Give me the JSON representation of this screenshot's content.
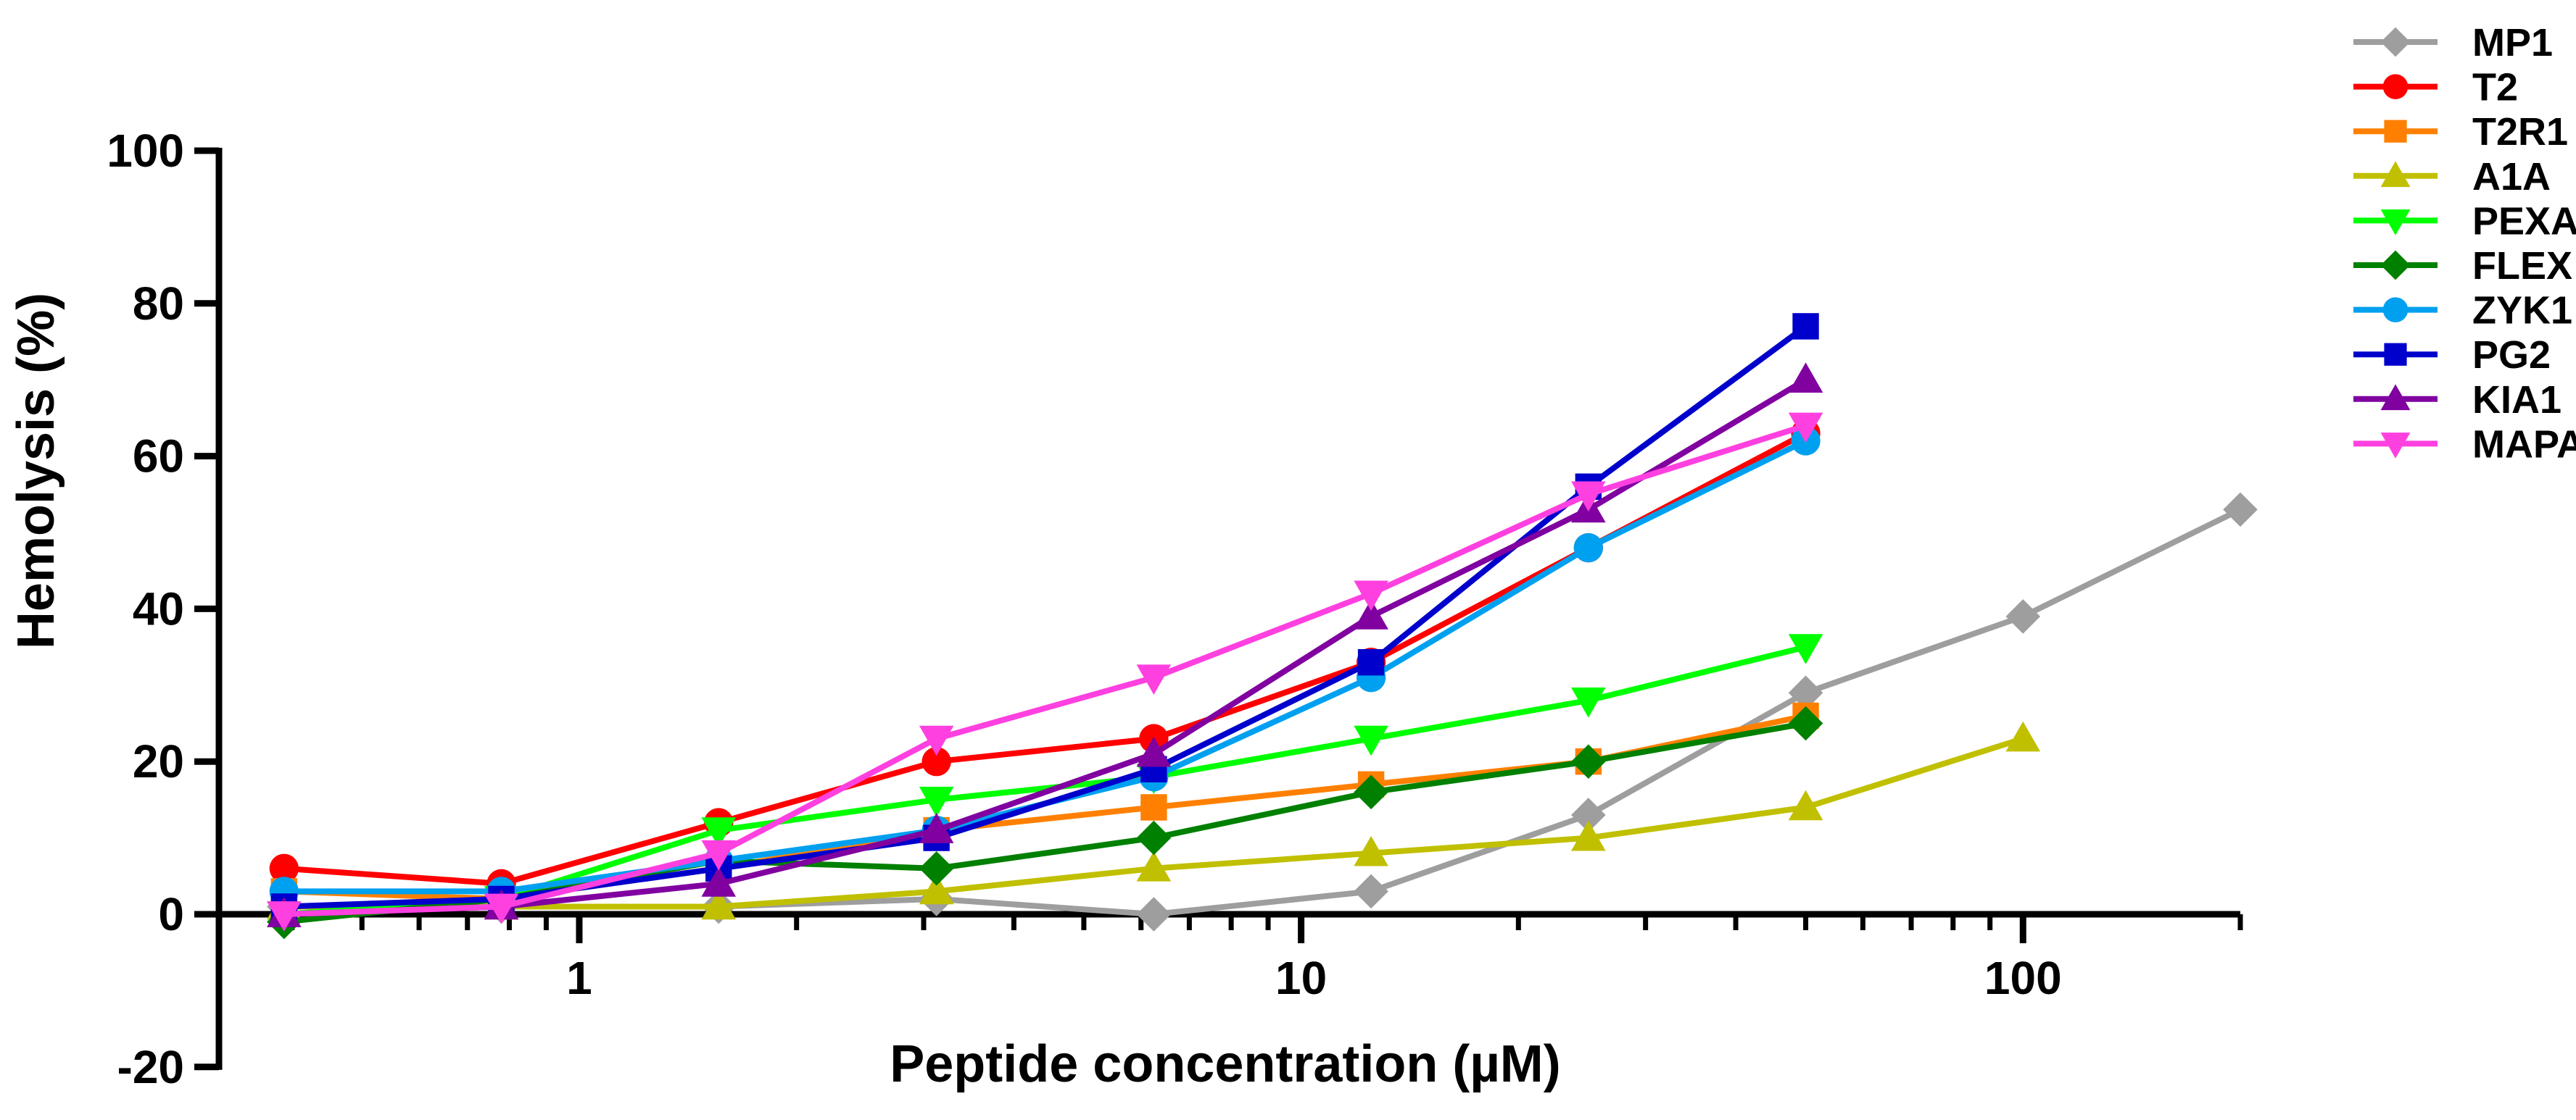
{
  "chart_data": {
    "type": "line",
    "title": "",
    "xlabel": "Peptide concentration (µM)",
    "ylabel": "Hemolysis (%)",
    "xscale": "log",
    "xlim": [
      0.35,
      200
    ],
    "ylim": [
      -20,
      100
    ],
    "yticks": [
      -20,
      0,
      20,
      40,
      60,
      80,
      100
    ],
    "xticks": [
      1,
      10,
      100
    ],
    "xtick_labels": [
      "1",
      "10",
      "100"
    ],
    "legend_position": "right",
    "series": [
      {
        "name": "MP1",
        "color": "#9E9E9E",
        "marker": "diamond",
        "x": [
          0.39,
          0.78,
          1.56,
          3.125,
          6.25,
          12.5,
          25,
          50,
          100,
          200
        ],
        "y": [
          1,
          1,
          1,
          2,
          0,
          3,
          13,
          29,
          39,
          53
        ]
      },
      {
        "name": "T2",
        "color": "#FF0000",
        "marker": "circle",
        "x": [
          0.39,
          0.78,
          1.56,
          3.125,
          6.25,
          12.5,
          25,
          50
        ],
        "y": [
          6,
          4,
          12,
          20,
          23,
          33,
          48,
          63
        ]
      },
      {
        "name": "T2R1",
        "color": "#FF8000",
        "marker": "square",
        "x": [
          0.39,
          0.78,
          1.56,
          3.125,
          6.25,
          12.5,
          25,
          50
        ],
        "y": [
          3,
          2,
          6,
          11,
          14,
          17,
          20,
          26
        ]
      },
      {
        "name": "A1A",
        "color": "#C0C000",
        "marker": "triangle-up",
        "x": [
          0.39,
          0.78,
          1.56,
          3.125,
          6.25,
          12.5,
          25,
          50,
          100
        ],
        "y": [
          1,
          1,
          1,
          3,
          6,
          8,
          10,
          14,
          23
        ]
      },
      {
        "name": "PEXA",
        "color": "#00FF00",
        "marker": "triangle-down",
        "x": [
          0.39,
          0.78,
          1.56,
          3.125,
          6.25,
          12.5,
          25,
          50
        ],
        "y": [
          0,
          2,
          11,
          15,
          18,
          23,
          28,
          35
        ]
      },
      {
        "name": "FLEX",
        "color": "#008000",
        "marker": "diamond",
        "x": [
          0.39,
          0.78,
          1.56,
          3.125,
          6.25,
          12.5,
          25,
          50
        ],
        "y": [
          -1,
          2,
          7,
          6,
          10,
          16,
          20,
          25
        ]
      },
      {
        "name": "ZYK1",
        "color": "#00A0F0",
        "marker": "circle",
        "x": [
          0.39,
          0.78,
          1.56,
          3.125,
          6.25,
          12.5,
          25,
          50
        ],
        "y": [
          3,
          3,
          7,
          11,
          18,
          31,
          48,
          62
        ]
      },
      {
        "name": "PG2",
        "color": "#0000CC",
        "marker": "square",
        "x": [
          0.39,
          0.78,
          1.56,
          3.125,
          6.25,
          12.5,
          25,
          50
        ],
        "y": [
          1,
          2,
          6,
          10,
          19,
          33,
          56,
          77
        ]
      },
      {
        "name": "KIA1",
        "color": "#8000A0",
        "marker": "triangle-up",
        "x": [
          0.39,
          0.78,
          1.56,
          3.125,
          6.25,
          12.5,
          25,
          50
        ],
        "y": [
          0,
          1,
          4,
          11,
          21,
          39,
          53,
          70
        ]
      },
      {
        "name": "MAPA",
        "color": "#FF40E0",
        "marker": "triangle-down",
        "x": [
          0.39,
          0.78,
          1.56,
          3.125,
          6.25,
          12.5,
          25,
          50
        ],
        "y": [
          0,
          1,
          8,
          23,
          31,
          42,
          55,
          64
        ]
      }
    ]
  }
}
